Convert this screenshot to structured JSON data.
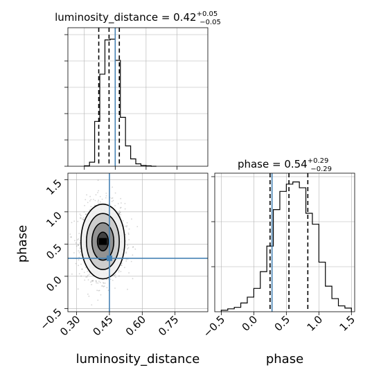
{
  "chart_data": [
    {
      "id": "lum_hist",
      "type": "bar",
      "title": "luminosity_distance = 0.42",
      "title_sup": "+0.05",
      "title_sub": "−0.05",
      "xlim": [
        0.22,
        0.9
      ],
      "bin_edges": [
        0.3,
        0.325,
        0.35,
        0.375,
        0.4,
        0.425,
        0.45,
        0.475,
        0.5,
        0.525,
        0.55,
        0.575,
        0.6,
        0.625,
        0.65
      ],
      "values": [
        0.5,
        5,
        55,
        113,
        155,
        156,
        130,
        60,
        25,
        9,
        3,
        1,
        0.5,
        0
      ],
      "ylim": [
        0,
        170
      ],
      "quantiles": [
        0.37,
        0.42,
        0.47
      ],
      "truth": 0.45,
      "grid": true,
      "y_tick_labels_shown": false
    },
    {
      "id": "phase_hist",
      "type": "bar",
      "title": "phase = 0.54",
      "title_sup": "+0.29",
      "title_sub": "−0.29",
      "xlabel": "phase",
      "xlim": [
        -0.6,
        1.55
      ],
      "bin_edges": [
        -0.5,
        -0.4,
        -0.3,
        -0.2,
        -0.1,
        0.0,
        0.1,
        0.2,
        0.3,
        0.4,
        0.5,
        0.6,
        0.7,
        0.8,
        0.9,
        1.0,
        1.1,
        1.2,
        1.3,
        1.4,
        1.5
      ],
      "values": [
        2,
        4,
        6,
        12,
        20,
        32,
        55,
        90,
        140,
        165,
        175,
        178,
        170,
        135,
        120,
        68,
        35,
        18,
        8,
        5
      ],
      "ylim": [
        0,
        190
      ],
      "quantiles": [
        0.25,
        0.54,
        0.83
      ],
      "truth": 0.28,
      "x_ticks": [
        "−0.5",
        "0.0",
        "0.5",
        "1.0",
        "1.5"
      ],
      "x_tick_values": [
        -0.5,
        0.0,
        0.5,
        1.0,
        1.5
      ],
      "grid": true,
      "y_tick_labels_shown": false
    },
    {
      "id": "joint",
      "type": "scatter",
      "xlabel": "luminosity_distance",
      "ylabel": "phase",
      "xlim": [
        0.26,
        0.9
      ],
      "ylim": [
        -0.55,
        1.6
      ],
      "x_ticks": [
        "0.30",
        "0.45",
        "0.60",
        "0.75"
      ],
      "x_tick_values": [
        0.3,
        0.45,
        0.6,
        0.75
      ],
      "y_ticks": [
        "−0.5",
        "0.0",
        "0.5",
        "1.0",
        "1.5"
      ],
      "y_tick_values": [
        -0.5,
        0.0,
        0.5,
        1.0,
        1.5
      ],
      "center": [
        0.42,
        0.54
      ],
      "spread": [
        0.05,
        0.29
      ],
      "contour_levels": [
        {
          "sigma": 0.5,
          "fill": "#3a3a3a"
        },
        {
          "sigma": 1.0,
          "fill": "#8c8c8c"
        },
        {
          "sigma": 1.5,
          "fill": "#c9c9c9"
        },
        {
          "sigma": 2.0,
          "fill": "#f0f0f0"
        }
      ],
      "truth": [
        0.45,
        0.28
      ],
      "grid": true
    }
  ],
  "colors": {
    "hist_line": "#000000",
    "truth": "#4682b4",
    "grid": "#b0b0b0",
    "points": "#555555"
  }
}
